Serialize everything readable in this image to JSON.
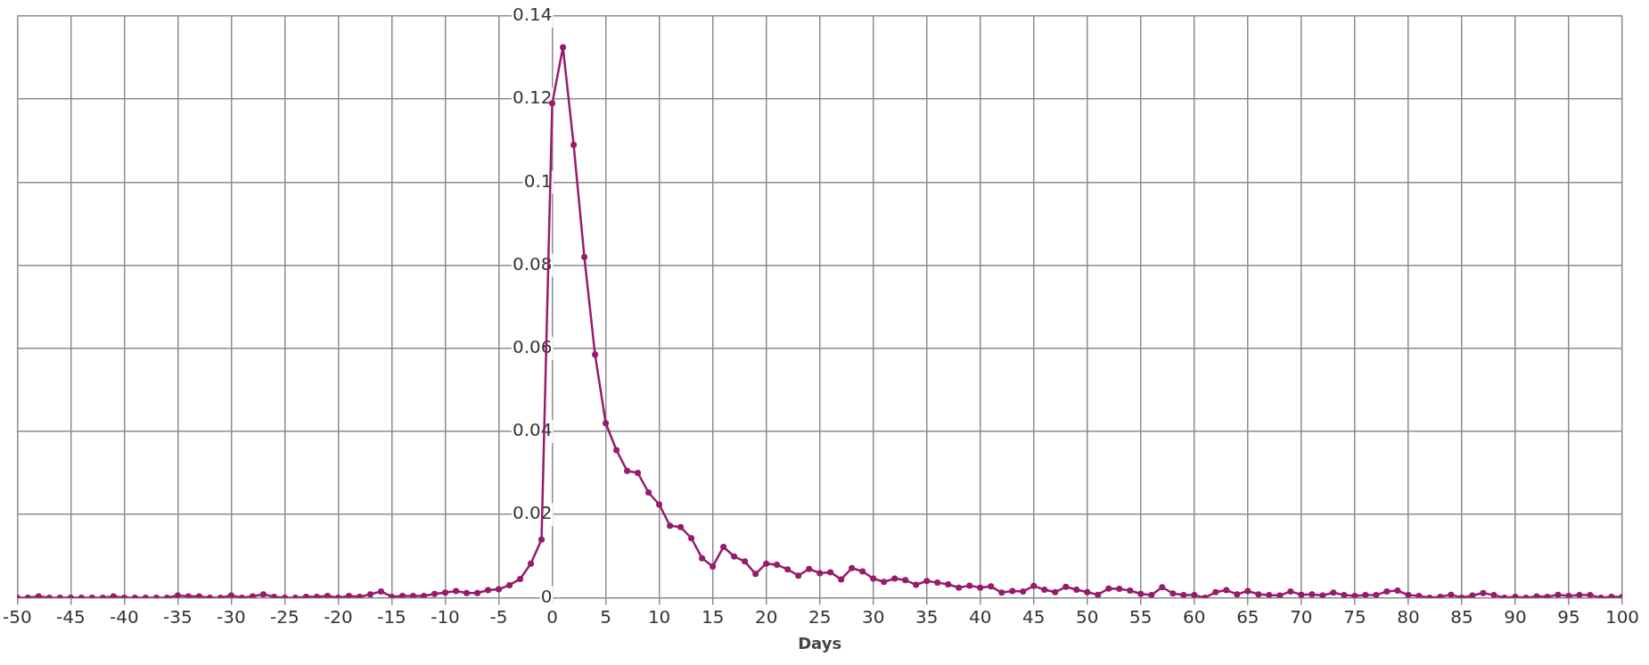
{
  "chart_data": {
    "type": "line",
    "xlabel": "Days",
    "x": [
      -50,
      -49,
      -48,
      -47,
      -46,
      -45,
      -44,
      -43,
      -42,
      -41,
      -40,
      -39,
      -38,
      -37,
      -36,
      -35,
      -34,
      -33,
      -32,
      -31,
      -30,
      -29,
      -28,
      -27,
      -26,
      -25,
      -24,
      -23,
      -22,
      -21,
      -20,
      -19,
      -18,
      -17,
      -16,
      -15,
      -14,
      -13,
      -12,
      -11,
      -10,
      -9,
      -8,
      -7,
      -6,
      -5,
      -4,
      -3,
      -2,
      -1,
      0,
      1,
      2,
      3,
      4,
      5,
      6,
      7,
      8,
      9,
      10,
      11,
      12,
      13,
      14,
      15,
      16,
      17,
      18,
      19,
      20,
      21,
      22,
      23,
      24,
      25,
      26,
      27,
      28,
      29,
      30,
      31,
      32,
      33,
      34,
      35,
      36,
      37,
      38,
      39,
      40,
      41,
      42,
      43,
      44,
      45,
      46,
      47,
      48,
      49,
      50,
      51,
      52,
      53,
      54,
      55,
      56,
      57,
      58,
      59,
      60,
      61,
      62,
      63,
      64,
      65,
      66,
      67,
      68,
      69,
      70,
      71,
      72,
      73,
      74,
      75,
      76,
      77,
      78,
      79,
      80,
      81,
      82,
      83,
      84,
      85,
      86,
      87,
      88,
      89,
      90,
      91,
      92,
      93,
      94,
      95,
      96,
      97,
      98,
      99,
      100
    ],
    "series": [
      {
        "color": "#971b6c",
        "values": [
          0,
          0,
          0.0003,
          0,
          0,
          0,
          0,
          0,
          0,
          0.0003,
          0,
          0,
          0,
          0,
          0,
          0.0005,
          0.0003,
          0.0003,
          0,
          0,
          0.0005,
          0,
          0.0003,
          0.0008,
          0.0002,
          0,
          0,
          0.0002,
          0.0002,
          0.0004,
          0,
          0.0004,
          0.0002,
          0.0008,
          0.0015,
          0.0002,
          0.0004,
          0.0004,
          0.0004,
          0.0009,
          0.0012,
          0.0016,
          0.0011,
          0.0011,
          0.0018,
          0.002,
          0.003,
          0.0045,
          0.0082,
          0.014,
          0.119,
          0.1325,
          0.109,
          0.082,
          0.0585,
          0.042,
          0.0355,
          0.0305,
          0.03,
          0.0253,
          0.0224,
          0.0173,
          0.017,
          0.0143,
          0.0095,
          0.0075,
          0.0122,
          0.0099,
          0.0087,
          0.0057,
          0.0082,
          0.0079,
          0.0068,
          0.0053,
          0.0069,
          0.0059,
          0.0061,
          0.0044,
          0.0071,
          0.0063,
          0.0046,
          0.0038,
          0.0046,
          0.0042,
          0.0031,
          0.004,
          0.0036,
          0.0032,
          0.0024,
          0.0029,
          0.0024,
          0.0027,
          0.0012,
          0.0016,
          0.0015,
          0.0028,
          0.0019,
          0.0013,
          0.0026,
          0.0019,
          0.0013,
          0.0007,
          0.0022,
          0.0021,
          0.0017,
          0.0009,
          0.0006,
          0.0025,
          0.001,
          0.0006,
          0.0006,
          0,
          0.0013,
          0.0018,
          0.0008,
          0.0016,
          0.0008,
          0.0006,
          0.0005,
          0.0015,
          0.0007,
          0.0008,
          0.0005,
          0.0012,
          0.0006,
          0.0004,
          0.0006,
          0.0006,
          0.0015,
          0.0017,
          0.0006,
          0.0004,
          0,
          0.0002,
          0.0007,
          0,
          0.0005,
          0.0011,
          0.0006,
          0,
          0.0002,
          0,
          0.0003,
          0.0002,
          0.0007,
          0.0004,
          0.0006,
          0.0006,
          0,
          0.0002,
          0.0002
        ]
      }
    ],
    "xlim": [
      -50,
      100
    ],
    "xticks": [
      -50,
      -45,
      -40,
      -35,
      -30,
      -25,
      -20,
      -15,
      -10,
      -5,
      0,
      5,
      10,
      15,
      20,
      25,
      30,
      35,
      40,
      45,
      50,
      55,
      60,
      65,
      70,
      75,
      80,
      85,
      90,
      95,
      100
    ],
    "ylim": [
      0,
      0.14
    ],
    "yticks": [
      0,
      0.02,
      0.04,
      0.06,
      0.08,
      0.1,
      0.12,
      0.14
    ],
    "grid": true,
    "legend": false,
    "marker": "circle",
    "line_style": "solid"
  }
}
